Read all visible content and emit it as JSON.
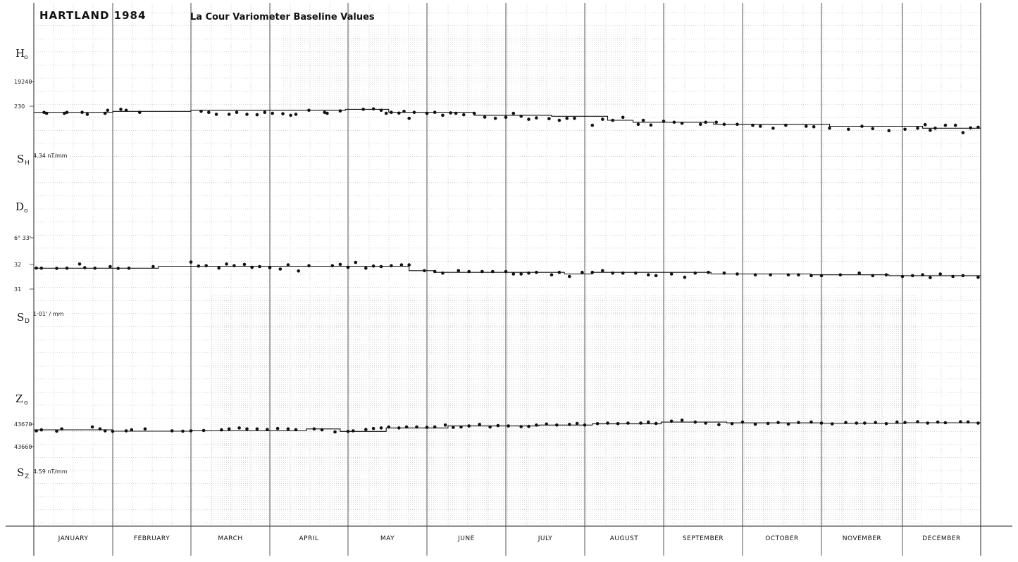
{
  "title": "HARTLAND 1984",
  "subtitle": "La Cour Variometer Baseline Values",
  "labels": {
    "H": "H",
    "H_sub": "o",
    "SH": "S",
    "SH_sub": "H",
    "SH_value": "4.34 nT/mm",
    "D": "D",
    "D_sub": "o",
    "SD": "S",
    "SD_sub": "D",
    "SD_value": "1·01' / mm",
    "Z": "Z",
    "Z_sub": "o",
    "SZ": "S",
    "SZ_sub": "Z",
    "SZ_value": "4.59 nT/mm"
  },
  "months": [
    "JANUARY",
    "FEBRUARY",
    "MARCH",
    "APRIL",
    "MAY",
    "JUNE",
    "JULY",
    "AUGUST",
    "SEPTEMBER",
    "OCTOBER",
    "NOVEMBER",
    "DECEMBER"
  ],
  "chart_data": [
    {
      "type": "scatter",
      "name": "H",
      "ylabel": "H",
      "ticks": [
        "19240",
        "230"
      ],
      "ylim": [
        19215,
        19245
      ],
      "x": [
        4,
        5,
        12,
        13,
        19,
        21,
        28,
        29,
        34,
        36,
        41,
        64,
        67,
        70,
        75,
        78,
        82,
        86,
        89,
        92,
        96,
        99,
        101,
        106,
        112,
        113,
        118,
        127,
        131,
        134,
        136,
        138,
        141,
        143,
        145,
        147,
        152,
        155,
        158,
        161,
        163,
        166,
        170,
        174,
        178,
        182,
        185,
        188,
        191,
        194,
        199,
        203,
        206,
        209,
        216,
        220,
        224,
        228,
        234,
        236,
        239,
        244,
        248,
        251,
        258,
        260,
        264,
        267,
        272,
        278,
        281,
        286,
        291,
        299,
        302,
        308,
        315,
        320,
        324,
        330,
        336,
        341,
        344,
        346,
        348,
        352,
        356,
        359,
        362,
        365
      ],
      "y": [
        19231,
        19230.5,
        19230.5,
        19231,
        19231,
        19230,
        19230.5,
        19232,
        19232.5,
        19232,
        19231,
        19231.5,
        19231,
        19230,
        19230,
        19231,
        19230,
        19229.8,
        19231,
        19230.5,
        19230.3,
        19229.5,
        19230,
        19232,
        19231,
        19230.5,
        19231.7,
        19232.5,
        19232.7,
        19232,
        19230.5,
        19231,
        19230.6,
        19231.5,
        19228,
        19231,
        19230.5,
        19231,
        19229.5,
        19230.7,
        19230.5,
        19229.8,
        19230.5,
        19228.6,
        19228,
        19228.5,
        19230.5,
        19229,
        19227.5,
        19228.2,
        19227.8,
        19227,
        19228,
        19228,
        19224.5,
        19227.5,
        19227,
        19228.5,
        19225,
        19227,
        19224.6,
        19226.5,
        19226,
        19225.5,
        19225,
        19226,
        19226,
        19225,
        19225,
        19224.5,
        19224,
        19223,
        19224.5,
        19224,
        19223.7,
        19223,
        19222.5,
        19224,
        19222.8,
        19221.8,
        19222.5,
        19223,
        19224.8,
        19222,
        19223,
        19224.5,
        19224.5,
        19220.8,
        19223.2,
        19223.5
      ],
      "baseline_steps": [
        [
          0,
          19231
        ],
        [
          31,
          19231.5
        ],
        [
          60,
          19232
        ],
        [
          120,
          19232.5
        ],
        [
          137,
          19231
        ],
        [
          170,
          19229.5
        ],
        [
          200,
          19229
        ],
        [
          222,
          19227
        ],
        [
          232,
          19226
        ],
        [
          263,
          19225
        ],
        [
          308,
          19224
        ],
        [
          343,
          19223
        ],
        [
          366,
          19223
        ]
      ]
    },
    {
      "type": "scatter",
      "name": "D",
      "ylabel": "D",
      "ticks": [
        "6° 33'",
        "32",
        "31"
      ],
      "ylim": [
        30.4,
        33.3
      ],
      "x": [
        1,
        3,
        9,
        13,
        18,
        20,
        24,
        30,
        33,
        37,
        46,
        60,
        63,
        66,
        71,
        74,
        77,
        81,
        84,
        87,
        91,
        95,
        98,
        102,
        106,
        115,
        118,
        121,
        124,
        128,
        131,
        134,
        138,
        142,
        145,
        151,
        155,
        158,
        164,
        168,
        173,
        177,
        182,
        185,
        188,
        191,
        194,
        200,
        203,
        207,
        212,
        216,
        220,
        224,
        228,
        233,
        238,
        241,
        247,
        252,
        256,
        261,
        267,
        272,
        279,
        285,
        292,
        296,
        301,
        305,
        312,
        319,
        324,
        329,
        335,
        339,
        343,
        346,
        350,
        355,
        359,
        365
      ],
      "y": [
        32.06,
        32.05,
        32.04,
        32.05,
        32.3,
        32.08,
        32.05,
        32.15,
        32.04,
        32.05,
        32.15,
        32.42,
        32.18,
        32.2,
        32.06,
        32.3,
        32.2,
        32.28,
        32.1,
        32.15,
        32.08,
        32.0,
        32.25,
        31.88,
        32.2,
        32.2,
        32.28,
        32.1,
        32.4,
        32.05,
        32.18,
        32.15,
        32.2,
        32.25,
        32.25,
        31.9,
        31.85,
        31.75,
        31.9,
        31.85,
        31.85,
        31.85,
        31.85,
        31.7,
        31.7,
        31.75,
        31.8,
        31.65,
        31.8,
        31.55,
        31.8,
        31.8,
        31.9,
        31.75,
        31.75,
        31.75,
        31.65,
        31.6,
        31.7,
        31.5,
        31.75,
        31.8,
        31.75,
        31.7,
        31.65,
        31.65,
        31.65,
        31.65,
        31.6,
        31.6,
        31.65,
        31.75,
        31.6,
        31.65,
        31.55,
        31.6,
        31.65,
        31.48,
        31.7,
        31.55,
        31.6,
        31.5
      ],
      "baseline_steps": [
        [
          0,
          32.05
        ],
        [
          48,
          32.17
        ],
        [
          145,
          31.9
        ],
        [
          155,
          31.8
        ],
        [
          205,
          31.7
        ],
        [
          216,
          31.8
        ],
        [
          262,
          31.7
        ],
        [
          301,
          31.65
        ],
        [
          330,
          31.6
        ],
        [
          366,
          31.6
        ]
      ]
    },
    {
      "type": "scatter",
      "name": "Z",
      "ylabel": "Z",
      "ticks": [
        "43670",
        "43660"
      ],
      "ylim": [
        43655,
        43675
      ],
      "x": [
        1,
        3,
        9,
        11,
        23,
        26,
        28,
        31,
        36,
        38,
        43,
        53,
        57,
        60,
        65,
        72,
        75,
        79,
        82,
        86,
        90,
        94,
        98,
        101,
        108,
        111,
        116,
        121,
        123,
        128,
        131,
        134,
        137,
        141,
        144,
        148,
        152,
        155,
        159,
        162,
        165,
        168,
        172,
        176,
        179,
        183,
        188,
        191,
        194,
        198,
        202,
        207,
        210,
        213,
        218,
        222,
        226,
        230,
        235,
        238,
        241,
        247,
        251,
        256,
        260,
        265,
        270,
        274,
        279,
        284,
        288,
        292,
        296,
        301,
        305,
        309,
        314,
        318,
        321,
        325,
        329,
        333,
        336,
        341,
        345,
        349,
        352,
        358,
        361,
        365
      ],
      "y": [
        43665,
        43665.5,
        43664.8,
        43666,
        43667,
        43666,
        43665,
        43664.7,
        43665,
        43665.5,
        43666,
        43665,
        43664.8,
        43665,
        43665.2,
        43665.5,
        43666,
        43666.5,
        43666,
        43666,
        43665.7,
        43666.2,
        43666,
        43665.6,
        43666,
        43665.5,
        43664.4,
        43664.7,
        43665,
        43665.7,
        43666.2,
        43666.5,
        43667,
        43666.5,
        43667,
        43667,
        43666.8,
        43667,
        43668,
        43666.8,
        43667,
        43667.5,
        43668.3,
        43667,
        43667.7,
        43667.5,
        43667.2,
        43667.3,
        43668,
        43668.5,
        43668,
        43668.3,
        43668.8,
        43668,
        43668.7,
        43669,
        43668.7,
        43669,
        43669,
        43669.5,
        43668.8,
        43670,
        43670.5,
        43669.5,
        43669,
        43668.2,
        43668.7,
        43669.5,
        43668.4,
        43668.8,
        43669.3,
        43668.5,
        43669.3,
        43669.5,
        43669,
        43668.6,
        43669.3,
        43669,
        43669,
        43669.3,
        43668.7,
        43669.5,
        43669.3,
        43669.7,
        43669,
        43669.5,
        43669.2,
        43669.7,
        43669.6,
        43669
      ],
      "baseline_steps": [
        [
          0,
          43665.5
        ],
        [
          31,
          43664.8
        ],
        [
          60,
          43665
        ],
        [
          105,
          43666
        ],
        [
          118,
          43664.7
        ],
        [
          136,
          43666.5
        ],
        [
          160,
          43667.5
        ],
        [
          195,
          43668
        ],
        [
          216,
          43668.6
        ],
        [
          243,
          43669.5
        ],
        [
          268,
          43669.1
        ],
        [
          305,
          43668.8
        ],
        [
          336,
          43669.2
        ],
        [
          366,
          43669.2
        ]
      ]
    }
  ]
}
